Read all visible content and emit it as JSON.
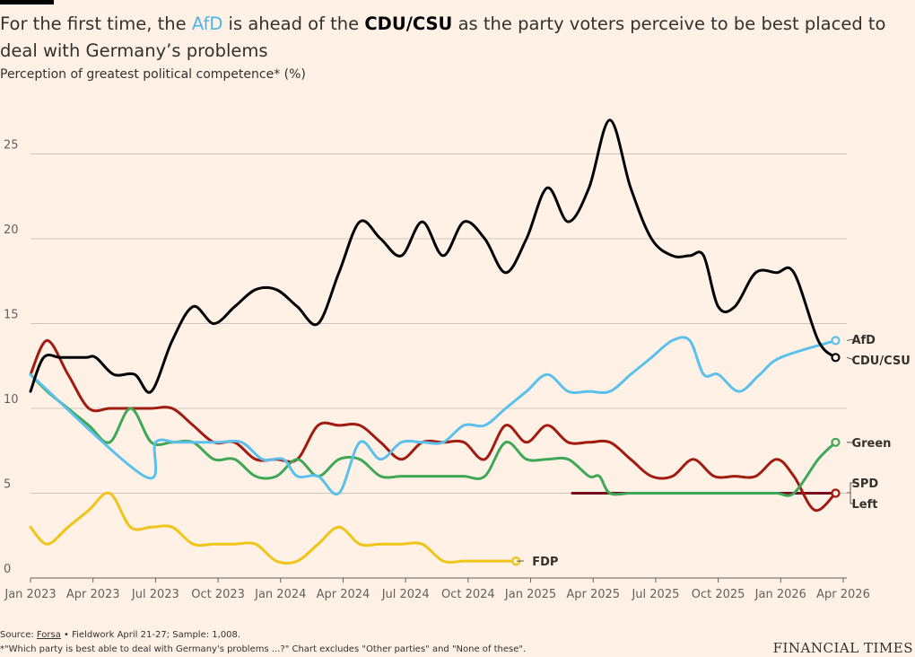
{
  "header": {
    "title_pre": "For the first time, the ",
    "title_afd": "AfD",
    "title_mid": " is ahead of the ",
    "title_cdu": "CDU/CSU",
    "title_post": " as the party voters perceive to be best placed to deal with Germany’s problems",
    "subtitle": "Perception of greatest political competence* (%)"
  },
  "footer": {
    "source_prefix": "Source: ",
    "source_link": "Forsa",
    "source_suffix": " • Fieldwork April 21-27; Sample: 1,008.",
    "note": "*\"Which party is best able to deal with Germany's problems ...?\" Chart excludes \"Other parties\" and \"None of these\".",
    "brand": "FINANCIAL TIMES"
  },
  "chart_data": {
    "type": "line",
    "xlabel": "",
    "ylabel": "",
    "xlim": [
      "2023-01",
      "2026-04"
    ],
    "ylim": [
      0,
      27
    ],
    "y_ticks": [
      0,
      5,
      10,
      15,
      20,
      25
    ],
    "x_ticks": [
      "Jan 2023",
      "Apr 2023",
      "Jul 2023",
      "Oct 2023",
      "Jan 2024",
      "Apr 2024",
      "Jul 2024",
      "Oct 2024",
      "Jan 2025",
      "Apr 2025",
      "Jul 2025",
      "Oct 2025",
      "Jan 2026",
      "Apr 2026"
    ],
    "grid": true,
    "series": [
      {
        "name": "CDU/CSU",
        "color": "#000000",
        "end_label": "CDU/CSU",
        "points": [
          [
            "2023-01-01",
            11
          ],
          [
            "2023-01-20",
            13
          ],
          [
            "2023-02-15",
            13
          ],
          [
            "2023-03-20",
            13
          ],
          [
            "2023-04-05",
            13
          ],
          [
            "2023-05-01",
            12
          ],
          [
            "2023-06-01",
            12
          ],
          [
            "2023-06-25",
            11
          ],
          [
            "2023-07-25",
            14
          ],
          [
            "2023-08-25",
            16
          ],
          [
            "2023-09-25",
            15
          ],
          [
            "2023-10-25",
            16
          ],
          [
            "2023-11-25",
            17
          ],
          [
            "2023-12-25",
            17
          ],
          [
            "2024-01-25",
            16
          ],
          [
            "2024-02-25",
            15
          ],
          [
            "2024-03-25",
            18
          ],
          [
            "2024-04-25",
            21
          ],
          [
            "2024-05-25",
            20
          ],
          [
            "2024-06-25",
            19
          ],
          [
            "2024-07-25",
            21
          ],
          [
            "2024-08-25",
            19
          ],
          [
            "2024-09-25",
            21
          ],
          [
            "2024-10-25",
            20
          ],
          [
            "2024-11-25",
            18
          ],
          [
            "2024-12-25",
            20
          ],
          [
            "2025-01-25",
            23
          ],
          [
            "2025-02-25",
            21
          ],
          [
            "2025-03-25",
            23
          ],
          [
            "2025-04-25",
            27
          ],
          [
            "2025-05-25",
            23
          ],
          [
            "2025-06-25",
            20
          ],
          [
            "2025-07-25",
            19
          ],
          [
            "2025-08-20",
            19
          ],
          [
            "2025-09-10",
            19
          ],
          [
            "2025-10-01",
            16
          ],
          [
            "2025-10-25",
            16
          ],
          [
            "2025-11-25",
            18
          ],
          [
            "2025-12-25",
            18
          ],
          [
            "2026-01-20",
            18
          ],
          [
            "2026-02-25",
            14
          ],
          [
            "2026-03-20",
            13
          ]
        ]
      },
      {
        "name": "AfD",
        "color": "#5BC0EB",
        "end_label": "AfD",
        "points": [
          [
            "2023-01-01",
            12
          ],
          [
            "2023-06-15",
            6
          ],
          [
            "2023-07-01",
            8
          ],
          [
            "2023-08-01",
            8
          ],
          [
            "2023-09-01",
            8
          ],
          [
            "2023-10-01",
            8
          ],
          [
            "2023-11-05",
            8
          ],
          [
            "2023-12-05",
            7
          ],
          [
            "2024-01-05",
            7
          ],
          [
            "2024-01-25",
            6
          ],
          [
            "2024-02-25",
            6
          ],
          [
            "2024-03-25",
            5
          ],
          [
            "2024-04-25",
            8
          ],
          [
            "2024-05-25",
            7
          ],
          [
            "2024-06-25",
            8
          ],
          [
            "2024-07-25",
            8
          ],
          [
            "2024-08-25",
            8
          ],
          [
            "2024-09-25",
            9
          ],
          [
            "2024-10-25",
            9
          ],
          [
            "2024-11-25",
            10
          ],
          [
            "2024-12-25",
            11
          ],
          [
            "2025-01-25",
            12
          ],
          [
            "2025-02-25",
            11
          ],
          [
            "2025-03-25",
            11
          ],
          [
            "2025-04-25",
            11
          ],
          [
            "2025-05-25",
            12
          ],
          [
            "2025-06-25",
            13
          ],
          [
            "2025-07-25",
            14
          ],
          [
            "2025-08-20",
            14
          ],
          [
            "2025-09-10",
            12
          ],
          [
            "2025-10-01",
            12
          ],
          [
            "2025-11-01",
            11
          ],
          [
            "2025-12-01",
            12
          ],
          [
            "2026-01-01",
            13
          ],
          [
            "2026-03-20",
            14
          ]
        ]
      },
      {
        "name": "Green",
        "color": "#3FA857",
        "end_label": "Green",
        "points": [
          [
            "2023-01-01",
            12
          ],
          [
            "2023-01-25",
            11
          ],
          [
            "2023-02-25",
            10
          ],
          [
            "2023-03-25",
            9
          ],
          [
            "2023-04-25",
            8
          ],
          [
            "2023-05-25",
            10
          ],
          [
            "2023-06-25",
            8
          ],
          [
            "2023-07-25",
            8
          ],
          [
            "2023-08-25",
            8
          ],
          [
            "2023-09-25",
            7
          ],
          [
            "2023-10-25",
            7
          ],
          [
            "2023-11-25",
            6
          ],
          [
            "2023-12-25",
            6
          ],
          [
            "2024-01-25",
            7
          ],
          [
            "2024-02-25",
            6
          ],
          [
            "2024-03-25",
            7
          ],
          [
            "2024-04-25",
            7
          ],
          [
            "2024-05-25",
            6
          ],
          [
            "2024-06-25",
            6
          ],
          [
            "2024-07-25",
            6
          ],
          [
            "2024-08-25",
            6
          ],
          [
            "2024-09-25",
            6
          ],
          [
            "2024-10-25",
            6
          ],
          [
            "2024-11-25",
            8
          ],
          [
            "2024-12-25",
            7
          ],
          [
            "2025-01-25",
            7
          ],
          [
            "2025-02-25",
            7
          ],
          [
            "2025-03-25",
            6
          ],
          [
            "2025-04-10",
            6
          ],
          [
            "2025-04-25",
            5
          ],
          [
            "2025-05-25",
            5
          ],
          [
            "2025-06-25",
            5
          ],
          [
            "2025-07-25",
            5
          ],
          [
            "2025-08-25",
            5
          ],
          [
            "2025-09-25",
            5
          ],
          [
            "2025-10-25",
            5
          ],
          [
            "2025-11-25",
            5
          ],
          [
            "2025-12-25",
            5
          ],
          [
            "2026-01-20",
            5
          ],
          [
            "2026-02-25",
            7
          ],
          [
            "2026-03-20",
            8
          ]
        ]
      },
      {
        "name": "SPD",
        "color": "#A11B11",
        "end_label": "SPD",
        "points": [
          [
            "2023-01-01",
            12
          ],
          [
            "2023-01-25",
            14
          ],
          [
            "2023-02-25",
            12
          ],
          [
            "2023-03-25",
            10
          ],
          [
            "2023-04-25",
            10
          ],
          [
            "2023-05-25",
            10
          ],
          [
            "2023-06-25",
            10
          ],
          [
            "2023-07-25",
            10
          ],
          [
            "2023-08-25",
            9
          ],
          [
            "2023-09-25",
            8
          ],
          [
            "2023-10-25",
            8
          ],
          [
            "2023-11-25",
            7
          ],
          [
            "2023-12-25",
            7
          ],
          [
            "2024-01-25",
            7
          ],
          [
            "2024-02-25",
            9
          ],
          [
            "2024-03-25",
            9
          ],
          [
            "2024-04-25",
            9
          ],
          [
            "2024-05-25",
            8
          ],
          [
            "2024-06-25",
            7
          ],
          [
            "2024-07-25",
            8
          ],
          [
            "2024-08-25",
            8
          ],
          [
            "2024-09-25",
            8
          ],
          [
            "2024-10-25",
            7
          ],
          [
            "2024-11-25",
            9
          ],
          [
            "2024-12-25",
            8
          ],
          [
            "2025-01-25",
            9
          ],
          [
            "2025-02-25",
            8
          ],
          [
            "2025-03-25",
            8
          ],
          [
            "2025-04-25",
            8
          ],
          [
            "2025-05-25",
            7
          ],
          [
            "2025-06-25",
            6
          ],
          [
            "2025-07-25",
            6
          ],
          [
            "2025-08-25",
            7
          ],
          [
            "2025-09-25",
            6
          ],
          [
            "2025-10-25",
            6
          ],
          [
            "2025-11-25",
            6
          ],
          [
            "2025-12-25",
            7
          ],
          [
            "2026-01-20",
            6
          ],
          [
            "2026-02-20",
            4
          ],
          [
            "2026-03-20",
            5
          ]
        ]
      },
      {
        "name": "Left",
        "color": "#7A0A1E",
        "end_label": "Left",
        "points": [
          [
            "2025-03-01",
            5
          ],
          [
            "2025-06-01",
            5
          ],
          [
            "2025-09-01",
            5
          ],
          [
            "2025-12-01",
            5
          ],
          [
            "2026-01-20",
            5
          ],
          [
            "2026-03-20",
            5
          ]
        ]
      },
      {
        "name": "FDP",
        "color": "#F0C419",
        "end_label": "FDP",
        "points": [
          [
            "2023-01-01",
            3
          ],
          [
            "2023-01-25",
            2
          ],
          [
            "2023-02-25",
            3
          ],
          [
            "2023-03-25",
            4
          ],
          [
            "2023-04-25",
            5
          ],
          [
            "2023-05-25",
            3
          ],
          [
            "2023-06-25",
            3
          ],
          [
            "2023-07-25",
            3
          ],
          [
            "2023-08-25",
            2
          ],
          [
            "2023-09-25",
            2
          ],
          [
            "2023-10-25",
            2
          ],
          [
            "2023-11-25",
            2
          ],
          [
            "2023-12-25",
            1
          ],
          [
            "2024-01-25",
            1
          ],
          [
            "2024-02-25",
            2
          ],
          [
            "2024-03-25",
            3
          ],
          [
            "2024-04-25",
            2
          ],
          [
            "2024-05-25",
            2
          ],
          [
            "2024-06-25",
            2
          ],
          [
            "2024-07-25",
            2
          ],
          [
            "2024-08-25",
            1
          ],
          [
            "2024-09-25",
            1
          ],
          [
            "2024-10-25",
            1
          ],
          [
            "2024-11-25",
            1
          ],
          [
            "2024-12-10",
            1
          ]
        ]
      }
    ]
  }
}
